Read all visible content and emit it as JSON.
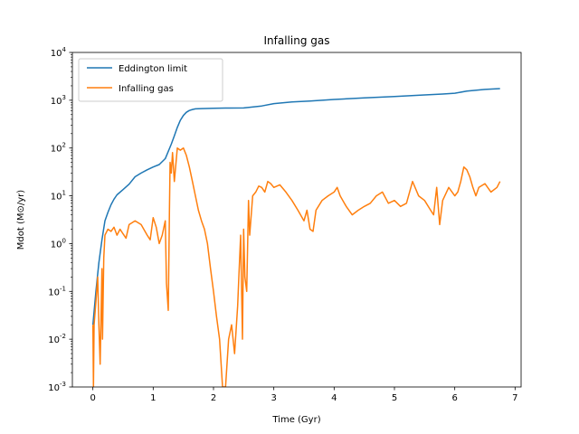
{
  "chart_data": {
    "type": "line",
    "title": "Infalling gas",
    "xlabel": "Time (Gyr)",
    "ylabel": "Mdot (M⊙/yr)",
    "yscale": "log",
    "xlim": [
      -0.34,
      7.1
    ],
    "ylim": [
      0.001,
      10000
    ],
    "xticks": [
      0,
      1,
      2,
      3,
      4,
      5,
      6,
      7
    ],
    "yticks": [
      0.001,
      0.01,
      0.1,
      1,
      10,
      100,
      1000,
      10000
    ],
    "ytick_exponents": [
      "-3",
      "-2",
      "-1",
      "0",
      "1",
      "2",
      "3",
      "4"
    ],
    "legend_position": "upper-left",
    "colors": {
      "eddington": "#1f77b4",
      "infall": "#ff7f0e"
    },
    "series": [
      {
        "name": "Eddington limit",
        "color": "#1f77b4",
        "x": [
          0.0,
          0.05,
          0.1,
          0.15,
          0.2,
          0.25,
          0.3,
          0.35,
          0.4,
          0.5,
          0.6,
          0.7,
          0.8,
          0.9,
          1.0,
          1.1,
          1.2,
          1.3,
          1.35,
          1.4,
          1.45,
          1.5,
          1.55,
          1.6,
          1.65,
          1.7,
          1.8,
          2.0,
          2.2,
          2.5,
          2.8,
          3.0,
          3.3,
          3.6,
          4.0,
          4.5,
          5.0,
          5.5,
          5.8,
          6.0,
          6.2,
          6.5,
          6.75
        ],
        "y": [
          0.02,
          0.1,
          0.4,
          1.2,
          3.0,
          4.5,
          6.5,
          8.5,
          10.5,
          13.5,
          17.5,
          25,
          30,
          35,
          40,
          45,
          60,
          120,
          180,
          270,
          380,
          480,
          560,
          610,
          640,
          660,
          670,
          680,
          685,
          690,
          760,
          850,
          920,
          960,
          1040,
          1120,
          1200,
          1290,
          1350,
          1400,
          1550,
          1680,
          1750
        ]
      },
      {
        "name": "Infalling gas",
        "color": "#ff7f0e",
        "x": [
          0.0,
          0.01,
          0.02,
          0.05,
          0.08,
          0.1,
          0.12,
          0.15,
          0.16,
          0.18,
          0.2,
          0.25,
          0.3,
          0.35,
          0.4,
          0.45,
          0.5,
          0.55,
          0.6,
          0.7,
          0.8,
          0.9,
          0.95,
          1.0,
          1.05,
          1.1,
          1.15,
          1.2,
          1.22,
          1.25,
          1.27,
          1.28,
          1.3,
          1.32,
          1.35,
          1.4,
          1.45,
          1.5,
          1.55,
          1.6,
          1.65,
          1.7,
          1.75,
          1.8,
          1.85,
          1.9,
          1.95,
          2.0,
          2.05,
          2.1,
          2.15,
          2.2,
          2.25,
          2.3,
          2.35,
          2.4,
          2.42,
          2.45,
          2.48,
          2.5,
          2.52,
          2.55,
          2.58,
          2.6,
          2.65,
          2.7,
          2.75,
          2.8,
          2.85,
          2.9,
          2.95,
          3.0,
          3.1,
          3.2,
          3.3,
          3.4,
          3.5,
          3.55,
          3.6,
          3.65,
          3.7,
          3.8,
          3.9,
          4.0,
          4.05,
          4.1,
          4.2,
          4.3,
          4.4,
          4.5,
          4.6,
          4.7,
          4.8,
          4.9,
          5.0,
          5.1,
          5.2,
          5.3,
          5.4,
          5.5,
          5.6,
          5.65,
          5.7,
          5.75,
          5.8,
          5.9,
          6.0,
          6.05,
          6.1,
          6.15,
          6.2,
          6.25,
          6.3,
          6.35,
          6.4,
          6.5,
          6.6,
          6.7,
          6.75
        ],
        "y": [
          0.02,
          0.001,
          0.02,
          0.06,
          0.2,
          0.02,
          0.003,
          0.3,
          0.01,
          0.5,
          1.5,
          2.0,
          1.8,
          2.2,
          1.5,
          2.0,
          1.6,
          1.3,
          2.5,
          3.0,
          2.5,
          1.5,
          1.2,
          3.5,
          2.2,
          1.0,
          1.5,
          3.0,
          0.15,
          0.04,
          5.0,
          50.0,
          30.0,
          80.0,
          20.0,
          100.0,
          90.0,
          100.0,
          70.0,
          40.0,
          20.0,
          10.0,
          5.0,
          3.0,
          2.0,
          1.0,
          0.3,
          0.1,
          0.03,
          0.01,
          0.001,
          0.001,
          0.01,
          0.02,
          0.005,
          0.05,
          0.2,
          1.5,
          0.01,
          2.0,
          0.2,
          0.1,
          8.0,
          1.5,
          10.0,
          12.0,
          16.0,
          15.0,
          12.0,
          20.0,
          18.0,
          15.0,
          17.0,
          12.0,
          8.0,
          5.0,
          3.0,
          5.0,
          2.0,
          1.8,
          5.0,
          8.0,
          10.0,
          12.0,
          15.0,
          10.0,
          6.0,
          4.0,
          5.0,
          6.0,
          7.0,
          10.0,
          12.0,
          7.0,
          8.0,
          6.0,
          7.0,
          20.0,
          10.0,
          8.0,
          5.0,
          4.0,
          15.0,
          2.5,
          8.0,
          15.0,
          10.0,
          12.0,
          20.0,
          40.0,
          35.0,
          25.0,
          15.0,
          10.0,
          15.0,
          18.0,
          12.0,
          15.0,
          20.0
        ]
      }
    ]
  }
}
